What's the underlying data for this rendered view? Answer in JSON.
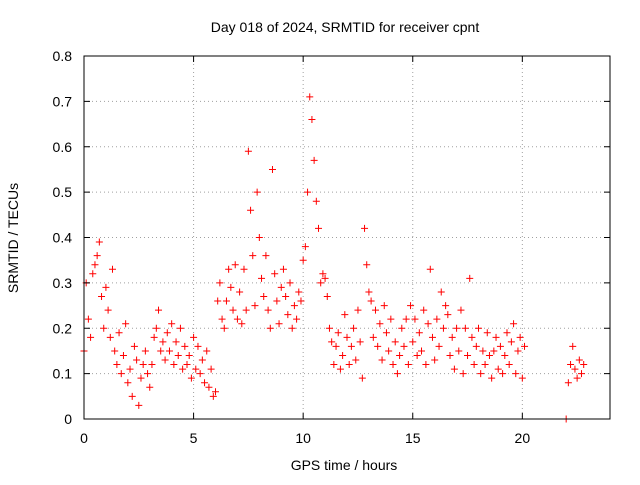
{
  "chart_data": {
    "type": "scatter",
    "title": "Day 018 of 2024, SRMTID for receiver cpnt",
    "xlabel": "GPS time / hours",
    "ylabel": "SRMTID / TECUs",
    "xlim": [
      0,
      24
    ],
    "ylim": [
      0,
      0.8
    ],
    "xticks": [
      0,
      5,
      10,
      15,
      20
    ],
    "yticks": [
      0,
      0.1,
      0.2,
      0.3,
      0.4,
      0.5,
      0.6,
      0.7,
      0.8
    ],
    "xtick_labels": [
      "0",
      "5",
      "10",
      "15",
      "20"
    ],
    "ytick_labels": [
      "0",
      "0.1",
      "0.2",
      "0.3",
      "0.4",
      "0.5",
      "0.6",
      "0.7",
      "0.8"
    ],
    "grid": true,
    "marker": "+",
    "series": [
      {
        "name": "SRMTID",
        "color": "#ff0000",
        "points": [
          [
            0.0,
            0.15
          ],
          [
            0.1,
            0.3
          ],
          [
            0.2,
            0.22
          ],
          [
            0.3,
            0.18
          ],
          [
            0.4,
            0.32
          ],
          [
            0.5,
            0.34
          ],
          [
            0.6,
            0.36
          ],
          [
            0.7,
            0.39
          ],
          [
            0.8,
            0.27
          ],
          [
            0.9,
            0.2
          ],
          [
            1.0,
            0.29
          ],
          [
            1.1,
            0.24
          ],
          [
            1.2,
            0.18
          ],
          [
            1.3,
            0.33
          ],
          [
            1.4,
            0.15
          ],
          [
            1.5,
            0.12
          ],
          [
            1.6,
            0.19
          ],
          [
            1.7,
            0.1
          ],
          [
            1.8,
            0.14
          ],
          [
            1.9,
            0.21
          ],
          [
            2.0,
            0.08
          ],
          [
            2.1,
            0.11
          ],
          [
            2.2,
            0.05
          ],
          [
            2.3,
            0.16
          ],
          [
            2.4,
            0.13
          ],
          [
            2.5,
            0.03
          ],
          [
            2.6,
            0.09
          ],
          [
            2.7,
            0.12
          ],
          [
            2.8,
            0.15
          ],
          [
            2.9,
            0.1
          ],
          [
            3.0,
            0.07
          ],
          [
            3.1,
            0.12
          ],
          [
            3.2,
            0.18
          ],
          [
            3.3,
            0.2
          ],
          [
            3.4,
            0.24
          ],
          [
            3.5,
            0.15
          ],
          [
            3.6,
            0.17
          ],
          [
            3.7,
            0.13
          ],
          [
            3.8,
            0.19
          ],
          [
            3.9,
            0.15
          ],
          [
            4.0,
            0.21
          ],
          [
            4.1,
            0.12
          ],
          [
            4.2,
            0.17
          ],
          [
            4.3,
            0.14
          ],
          [
            4.4,
            0.2
          ],
          [
            4.5,
            0.11
          ],
          [
            4.6,
            0.16
          ],
          [
            4.7,
            0.12
          ],
          [
            4.8,
            0.14
          ],
          [
            4.9,
            0.09
          ],
          [
            5.0,
            0.18
          ],
          [
            5.1,
            0.11
          ],
          [
            5.2,
            0.16
          ],
          [
            5.3,
            0.1
          ],
          [
            5.4,
            0.13
          ],
          [
            5.5,
            0.08
          ],
          [
            5.6,
            0.15
          ],
          [
            5.7,
            0.07
          ],
          [
            5.8,
            0.11
          ],
          [
            5.9,
            0.05
          ],
          [
            6.0,
            0.06
          ],
          [
            6.1,
            0.26
          ],
          [
            6.2,
            0.3
          ],
          [
            6.3,
            0.22
          ],
          [
            6.4,
            0.2
          ],
          [
            6.5,
            0.26
          ],
          [
            6.6,
            0.33
          ],
          [
            6.7,
            0.29
          ],
          [
            6.8,
            0.24
          ],
          [
            6.9,
            0.34
          ],
          [
            7.0,
            0.22
          ],
          [
            7.1,
            0.28
          ],
          [
            7.2,
            0.21
          ],
          [
            7.3,
            0.33
          ],
          [
            7.4,
            0.24
          ],
          [
            7.5,
            0.59
          ],
          [
            7.6,
            0.46
          ],
          [
            7.7,
            0.36
          ],
          [
            7.8,
            0.25
          ],
          [
            7.9,
            0.5
          ],
          [
            8.0,
            0.4
          ],
          [
            8.1,
            0.31
          ],
          [
            8.2,
            0.27
          ],
          [
            8.3,
            0.36
          ],
          [
            8.4,
            0.24
          ],
          [
            8.5,
            0.2
          ],
          [
            8.6,
            0.55
          ],
          [
            8.7,
            0.32
          ],
          [
            8.8,
            0.26
          ],
          [
            8.9,
            0.21
          ],
          [
            9.0,
            0.29
          ],
          [
            9.1,
            0.33
          ],
          [
            9.2,
            0.27
          ],
          [
            9.3,
            0.23
          ],
          [
            9.4,
            0.3
          ],
          [
            9.5,
            0.2
          ],
          [
            9.6,
            0.25
          ],
          [
            9.7,
            0.22
          ],
          [
            9.8,
            0.28
          ],
          [
            9.9,
            0.26
          ],
          [
            10.0,
            0.35
          ],
          [
            10.1,
            0.38
          ],
          [
            10.2,
            0.5
          ],
          [
            10.3,
            0.71
          ],
          [
            10.4,
            0.66
          ],
          [
            10.5,
            0.57
          ],
          [
            10.6,
            0.48
          ],
          [
            10.7,
            0.42
          ],
          [
            10.8,
            0.3
          ],
          [
            10.9,
            0.32
          ],
          [
            11.0,
            0.31
          ],
          [
            11.1,
            0.27
          ],
          [
            11.2,
            0.2
          ],
          [
            11.3,
            0.17
          ],
          [
            11.4,
            0.12
          ],
          [
            11.5,
            0.16
          ],
          [
            11.6,
            0.19
          ],
          [
            11.7,
            0.11
          ],
          [
            11.8,
            0.14
          ],
          [
            11.9,
            0.23
          ],
          [
            12.0,
            0.18
          ],
          [
            12.1,
            0.12
          ],
          [
            12.2,
            0.16
          ],
          [
            12.3,
            0.2
          ],
          [
            12.4,
            0.13
          ],
          [
            12.5,
            0.24
          ],
          [
            12.6,
            0.17
          ],
          [
            12.7,
            0.09
          ],
          [
            12.8,
            0.42
          ],
          [
            12.9,
            0.34
          ],
          [
            13.0,
            0.28
          ],
          [
            13.1,
            0.26
          ],
          [
            13.2,
            0.18
          ],
          [
            13.3,
            0.24
          ],
          [
            13.4,
            0.16
          ],
          [
            13.5,
            0.21
          ],
          [
            13.6,
            0.13
          ],
          [
            13.7,
            0.25
          ],
          [
            13.8,
            0.19
          ],
          [
            13.9,
            0.15
          ],
          [
            14.0,
            0.22
          ],
          [
            14.1,
            0.12
          ],
          [
            14.2,
            0.17
          ],
          [
            14.3,
            0.1
          ],
          [
            14.4,
            0.14
          ],
          [
            14.5,
            0.2
          ],
          [
            14.6,
            0.16
          ],
          [
            14.7,
            0.22
          ],
          [
            14.8,
            0.12
          ],
          [
            14.9,
            0.25
          ],
          [
            15.0,
            0.17
          ],
          [
            15.1,
            0.22
          ],
          [
            15.2,
            0.14
          ],
          [
            15.3,
            0.19
          ],
          [
            15.4,
            0.15
          ],
          [
            15.5,
            0.24
          ],
          [
            15.6,
            0.12
          ],
          [
            15.7,
            0.21
          ],
          [
            15.8,
            0.33
          ],
          [
            15.9,
            0.18
          ],
          [
            16.0,
            0.13
          ],
          [
            16.1,
            0.22
          ],
          [
            16.2,
            0.16
          ],
          [
            16.3,
            0.28
          ],
          [
            16.4,
            0.2
          ],
          [
            16.5,
            0.25
          ],
          [
            16.6,
            0.23
          ],
          [
            16.7,
            0.14
          ],
          [
            16.8,
            0.18
          ],
          [
            16.9,
            0.11
          ],
          [
            17.0,
            0.2
          ],
          [
            17.1,
            0.15
          ],
          [
            17.2,
            0.24
          ],
          [
            17.3,
            0.1
          ],
          [
            17.4,
            0.2
          ],
          [
            17.5,
            0.14
          ],
          [
            17.6,
            0.31
          ],
          [
            17.7,
            0.18
          ],
          [
            17.8,
            0.12
          ],
          [
            17.9,
            0.16
          ],
          [
            18.0,
            0.2
          ],
          [
            18.1,
            0.1
          ],
          [
            18.2,
            0.15
          ],
          [
            18.3,
            0.12
          ],
          [
            18.4,
            0.19
          ],
          [
            18.5,
            0.14
          ],
          [
            18.6,
            0.09
          ],
          [
            18.7,
            0.15
          ],
          [
            18.8,
            0.18
          ],
          [
            18.9,
            0.11
          ],
          [
            19.0,
            0.16
          ],
          [
            19.1,
            0.1
          ],
          [
            19.2,
            0.14
          ],
          [
            19.3,
            0.19
          ],
          [
            19.4,
            0.12
          ],
          [
            19.5,
            0.17
          ],
          [
            19.6,
            0.21
          ],
          [
            19.7,
            0.1
          ],
          [
            19.8,
            0.15
          ],
          [
            19.9,
            0.18
          ],
          [
            20.0,
            0.09
          ],
          [
            20.1,
            0.16
          ],
          [
            22.0,
            0.0
          ],
          [
            22.1,
            0.08
          ],
          [
            22.2,
            0.12
          ],
          [
            22.3,
            0.16
          ],
          [
            22.4,
            0.11
          ],
          [
            22.5,
            0.09
          ],
          [
            22.6,
            0.13
          ],
          [
            22.7,
            0.1
          ],
          [
            22.8,
            0.12
          ]
        ]
      }
    ]
  }
}
